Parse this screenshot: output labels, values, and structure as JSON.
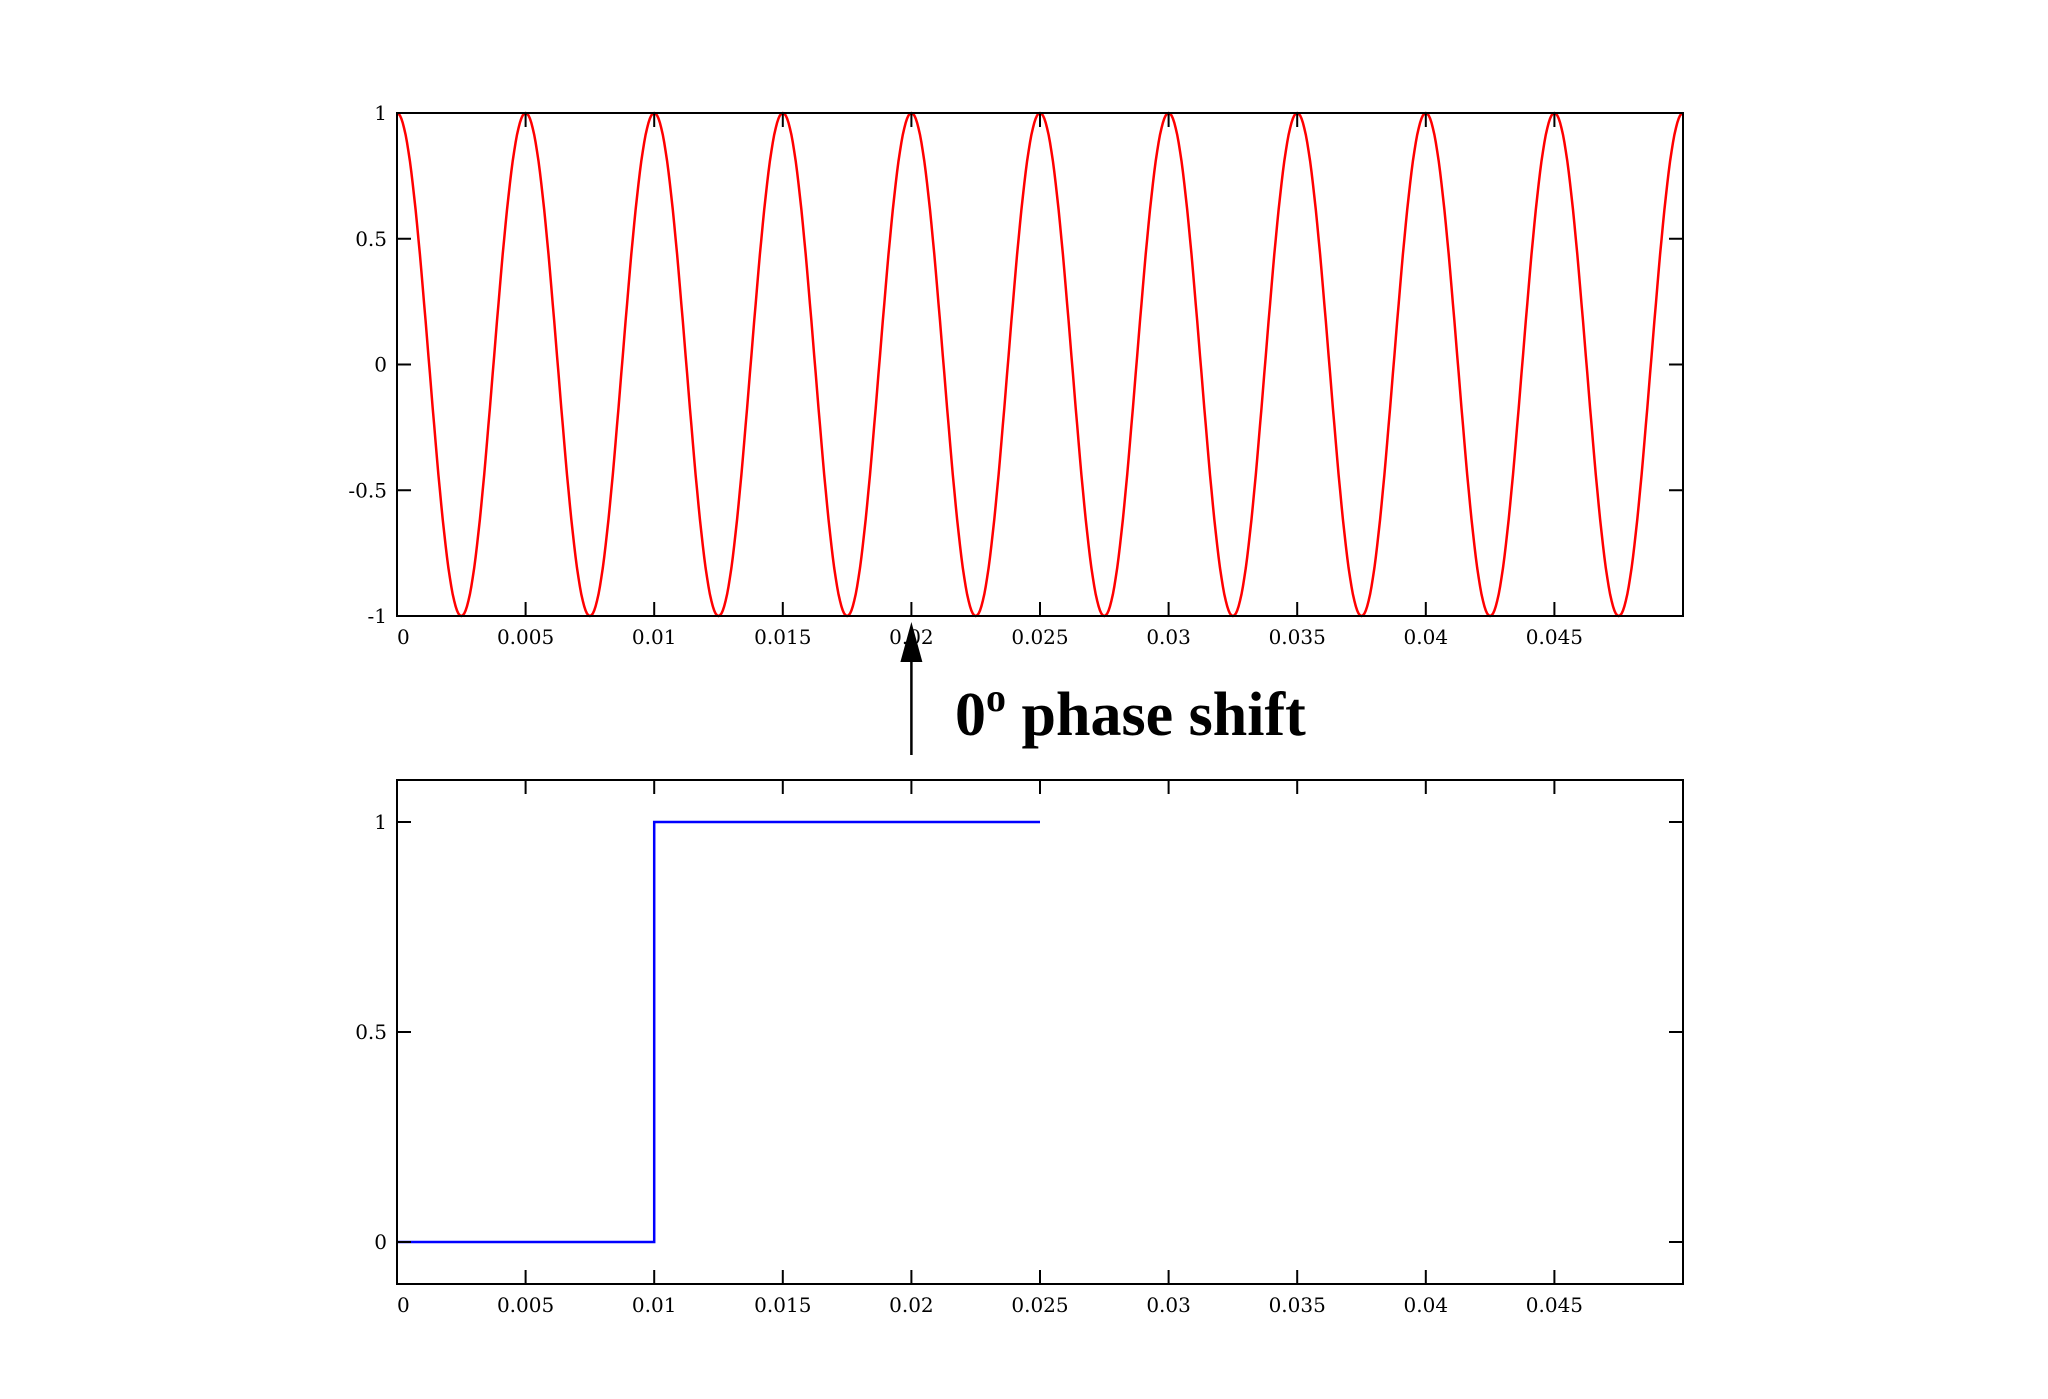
{
  "chart_data": [
    {
      "type": "line",
      "title": "",
      "xlabel": "",
      "ylabel": "",
      "xlim": [
        0,
        0.05
      ],
      "ylim": [
        -1,
        1
      ],
      "grid": false,
      "x_ticks": [
        "0",
        "0.005",
        "0.01",
        "0.015",
        "0.02",
        "0.025",
        "0.03",
        "0.035",
        "0.04",
        "0.045"
      ],
      "y_ticks": [
        "-1",
        "-0.5",
        "0",
        "0.5",
        "1"
      ],
      "series": [
        {
          "color": "#ff0000",
          "function": "cos(2*pi*200*t), 200 Hz, reset to +1 at each jump x",
          "frequency_hz": 200,
          "jumps_x": [
            0.01,
            0.03,
            0.04
          ],
          "x_start": 0,
          "x_end": 0.05
        }
      ]
    },
    {
      "type": "line",
      "title": "",
      "xlabel": "",
      "ylabel": "",
      "xlim": [
        0,
        0.05
      ],
      "ylim": [
        -0.1,
        1.1
      ],
      "grid": false,
      "x_ticks": [
        "0",
        "0.005",
        "0.01",
        "0.015",
        "0.02",
        "0.025",
        "0.03",
        "0.035",
        "0.04",
        "0.045"
      ],
      "y_ticks": [
        "0",
        "0.5",
        "1"
      ],
      "series": [
        {
          "color": "#0000ff",
          "x": [
            0,
            0.01,
            0.01,
            0.025
          ],
          "y": [
            0,
            0,
            1,
            1
          ]
        }
      ]
    }
  ],
  "annotation": {
    "value": "0",
    "superscript": "o",
    "text": " phase shift",
    "x": 0.02
  }
}
